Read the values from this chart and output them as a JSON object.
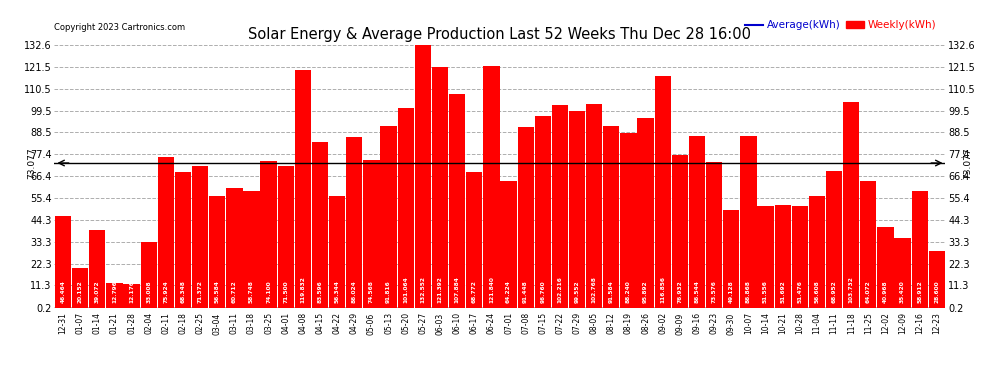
{
  "title": "Solar Energy & Average Production Last 52 Weeks Thu Dec 28 16:00",
  "copyright": "Copyright 2023 Cartronics.com",
  "legend_avg": "Average(kWh)",
  "legend_weekly": "Weekly(kWh)",
  "average_value": 73.077,
  "ylim": [
    0.2,
    132.6
  ],
  "yticks": [
    0.2,
    11.3,
    22.3,
    33.3,
    44.3,
    55.4,
    66.4,
    77.4,
    88.5,
    99.5,
    110.5,
    121.5,
    132.6
  ],
  "bar_color": "#ff0000",
  "avg_line_color": "#000000",
  "avg_legend_color": "#0000cd",
  "background_color": "#ffffff",
  "grid_color": "#999999",
  "categories": [
    "12-31",
    "01-07",
    "01-14",
    "01-21",
    "01-28",
    "02-04",
    "02-11",
    "02-18",
    "02-25",
    "03-04",
    "03-11",
    "03-18",
    "03-25",
    "04-01",
    "04-08",
    "04-15",
    "04-22",
    "04-29",
    "05-06",
    "05-13",
    "05-20",
    "05-27",
    "06-03",
    "06-10",
    "06-17",
    "06-24",
    "07-01",
    "07-08",
    "07-15",
    "07-22",
    "07-29",
    "08-05",
    "08-12",
    "08-19",
    "08-26",
    "09-02",
    "09-09",
    "09-16",
    "09-23",
    "09-30",
    "10-07",
    "10-14",
    "10-21",
    "10-28",
    "11-04",
    "11-11",
    "11-18",
    "11-25",
    "12-02",
    "12-09",
    "12-16",
    "12-23"
  ],
  "values": [
    46.464,
    20.152,
    39.072,
    12.796,
    12.176,
    33.008,
    75.924,
    68.348,
    71.372,
    56.584,
    60.712,
    58.748,
    74.1,
    71.5,
    119.832,
    83.596,
    56.344,
    86.024,
    74.568,
    91.816,
    101.064,
    132.552,
    121.392,
    107.884,
    68.772,
    121.84,
    64.224,
    91.448,
    96.76,
    102.216,
    99.552,
    102.768,
    91.584,
    88.24,
    95.892,
    116.856,
    76.932,
    86.544,
    73.576,
    49.128,
    86.868,
    51.556,
    51.692,
    51.476,
    56.608,
    68.952,
    103.732,
    64.072,
    40.968,
    35.42,
    58.912,
    28.6
  ]
}
